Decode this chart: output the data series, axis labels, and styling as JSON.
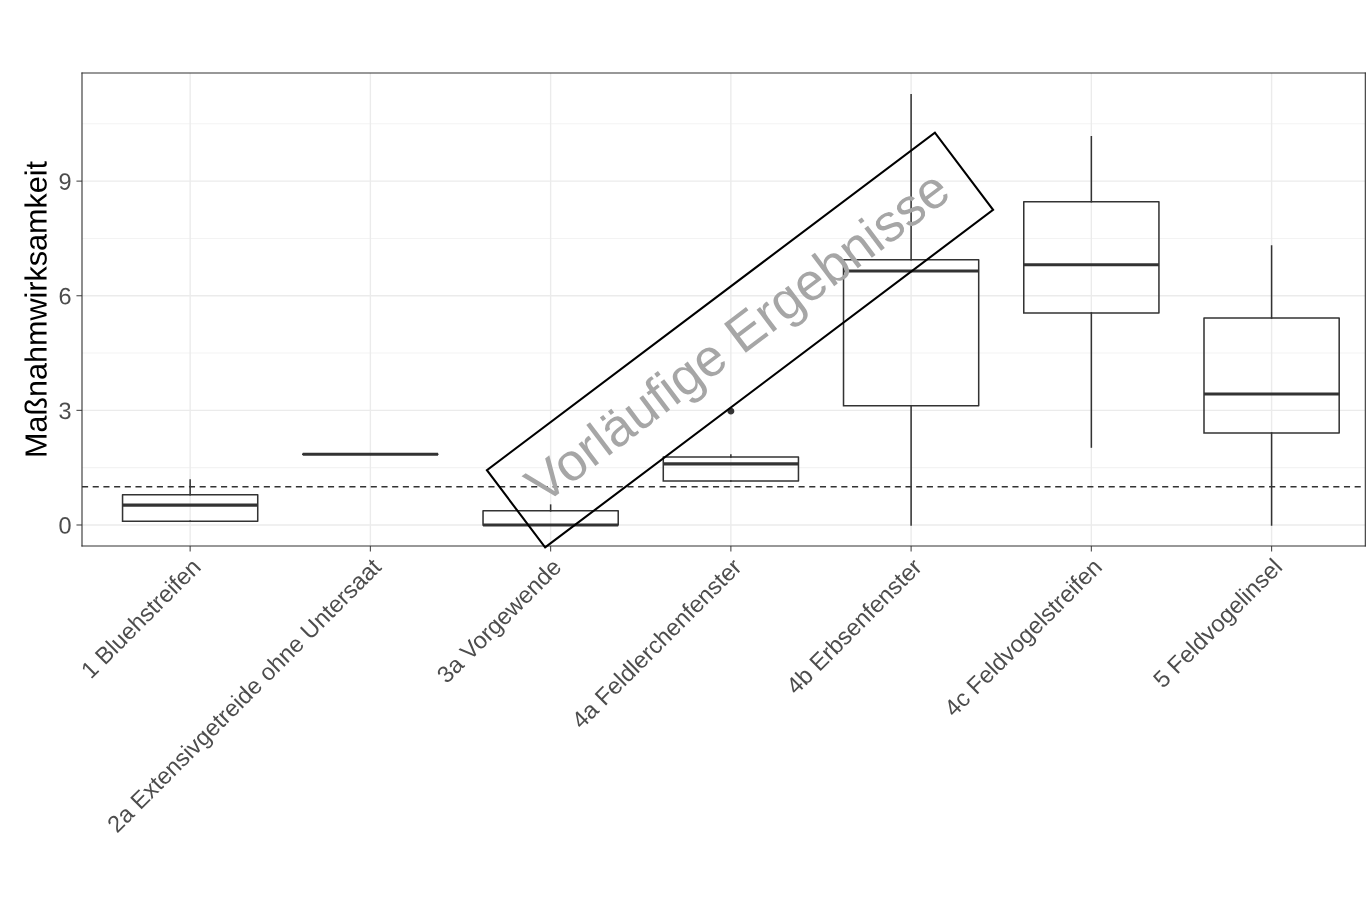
{
  "chart_data": {
    "type": "box",
    "ylabel": "Maßnahmwirksamkeit",
    "categories": [
      "1 Bluehstreifen",
      "2a Extensivgetreide ohne Untersaat",
      "3a Vorgewende",
      "4a Feldlerchenfenster",
      "4b Erbsenfenster",
      "4c Feldvogelstreifen",
      "5 Feldvogelinsel"
    ],
    "boxes": [
      {
        "low": 0.1,
        "q1": 0.1,
        "median": 0.52,
        "q3": 0.79,
        "high": 1.18
      },
      {
        "low": 1.85,
        "q1": 1.85,
        "median": 1.85,
        "q3": 1.85,
        "high": 1.85
      },
      {
        "low": 0,
        "q1": 0,
        "median": 0,
        "q3": 0.37,
        "high": 0.52
      },
      {
        "low": 1.15,
        "q1": 1.15,
        "median": 1.6,
        "q3": 1.78,
        "high": 1.83,
        "outliers": [
          2.98
        ]
      },
      {
        "low": 0,
        "q1": 3.12,
        "median": 6.65,
        "q3": 6.94,
        "high": 11.26
      },
      {
        "low": 2.04,
        "q1": 5.55,
        "median": 6.81,
        "q3": 8.46,
        "high": 10.16
      },
      {
        "low": 0,
        "q1": 2.41,
        "median": 3.43,
        "q3": 5.42,
        "high": 7.3
      }
    ],
    "ylim": [
      -0.55,
      11.83
    ],
    "yticks": [
      0,
      3,
      6,
      9
    ],
    "grid": true,
    "ref_lines": [
      {
        "axis": "y",
        "value": 1,
        "line_style": "dashed",
        "color": "#333333"
      }
    ],
    "annotations": [
      "Vorläufige Ergebnisse"
    ]
  }
}
